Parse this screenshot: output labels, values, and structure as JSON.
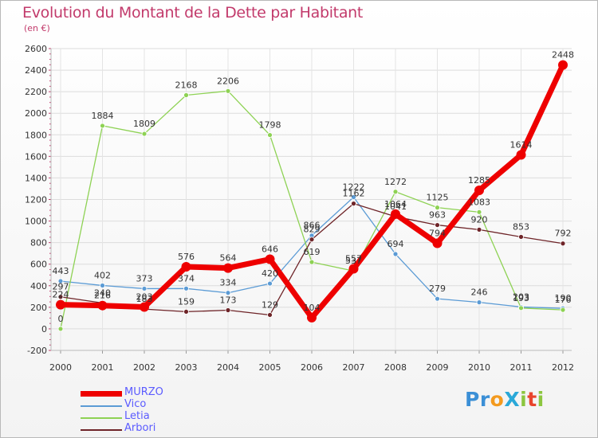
{
  "title": "Evolution du Montant de la Dette par Habitant",
  "subtitle": "(en €)",
  "brand": {
    "text": "Proxiti",
    "letters": [
      {
        "ch": "P",
        "color": "#3b8fd6"
      },
      {
        "ch": "r",
        "color": "#3b8fd6"
      },
      {
        "ch": "o",
        "color": "#f39a1e"
      },
      {
        "ch": "X",
        "color": "#2aa8d8"
      },
      {
        "ch": "i",
        "color": "#8cc63f"
      },
      {
        "ch": "t",
        "color": "#e8442d"
      },
      {
        "ch": "i",
        "color": "#8cc63f"
      }
    ]
  },
  "chart_data": {
    "type": "line",
    "x": [
      "2000",
      "2001",
      "2002",
      "2003",
      "2004",
      "2005",
      "2006",
      "2007",
      "2008",
      "2009",
      "2010",
      "2011",
      "2012"
    ],
    "ylim": [
      -200,
      2600
    ],
    "yticks": [
      -200,
      0,
      200,
      400,
      600,
      800,
      1000,
      1200,
      1400,
      1600,
      1800,
      2000,
      2200,
      2400,
      2600
    ],
    "grid": true,
    "legend_position": "bottom-left",
    "series": [
      {
        "name": "Vico",
        "color": "#5b9bd5",
        "width": 1.3,
        "marker": 3,
        "values": [
          443,
          402,
          373,
          374,
          334,
          420,
          866,
          1222,
          694,
          279,
          246,
          203,
          190
        ],
        "labels": [
          "443",
          "402",
          "373",
          "374",
          "334",
          "420",
          "866",
          "1222",
          "694",
          "279",
          "246",
          "203",
          "190"
        ]
      },
      {
        "name": "Letia",
        "color": "#8ed254",
        "width": 1.3,
        "marker": 3,
        "values": [
          0,
          1884,
          1809,
          2168,
          2206,
          1798,
          619,
          537,
          1272,
          1125,
          1083,
          193,
          176
        ],
        "labels": [
          "0",
          "1884",
          "1809",
          "2168",
          "2206",
          "1798",
          "619",
          "537",
          "1272",
          "1125",
          "1083",
          "193",
          "176"
        ]
      },
      {
        "name": "Arbori",
        "color": "#6e2428",
        "width": 1.3,
        "marker": 3,
        "values": [
          297,
          240,
          183,
          159,
          173,
          129,
          829,
          1162,
          1041,
          963,
          920,
          853,
          792
        ],
        "labels": [
          "297",
          "240",
          "183",
          "159",
          "173",
          "129",
          "829",
          "1162",
          "1041",
          "963",
          "920",
          "853",
          "792"
        ]
      },
      {
        "name": "MURZO",
        "color": "#ee0000",
        "width": 7,
        "marker": 6,
        "values": [
          224,
          216,
          203,
          576,
          564,
          646,
          104,
          557,
          1064,
          794,
          1285,
          1614,
          2448
        ],
        "labels": [
          "224",
          "216",
          "203",
          "576",
          "564",
          "646",
          "104",
          "557",
          "1064",
          "794",
          "1285",
          "1614",
          "2448"
        ]
      }
    ],
    "legend_order": [
      "MURZO",
      "Vico",
      "Letia",
      "Arbori"
    ]
  }
}
